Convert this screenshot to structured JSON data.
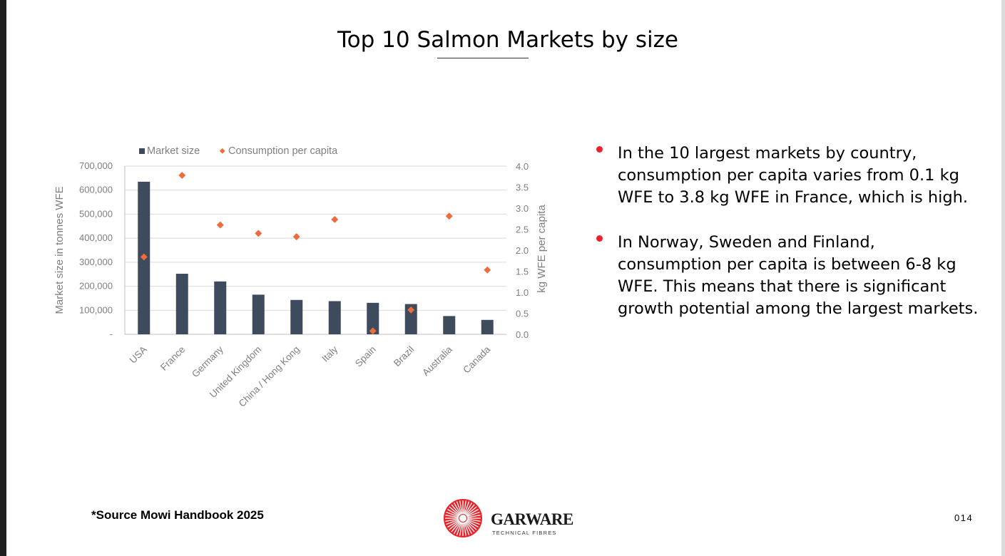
{
  "slide": {
    "title": "Top 10 Salmon Markets by size",
    "source_note": "*Source Mowi Handbook 2025",
    "page_number": "014",
    "logo_name": "GARWARE",
    "logo_tagline": "TECHNICAL FIBRES",
    "accent_color": "#e8232a"
  },
  "bullets": [
    "In the 10 largest markets by country, consumption per capita varies from 0.1 kg WFE to 3.8 kg WFE in France, which is high.",
    "In Norway, Sweden and Finland, consumption per capita is between 6-8 kg WFE. This means that there is significant growth potential among the largest markets."
  ],
  "chart_data": {
    "type": "bar",
    "title": "",
    "categories": [
      "USA",
      "France",
      "Germany",
      "United Kingdom",
      "China / Hong Kong",
      "Italy",
      "Spain",
      "Brazil",
      "Australia",
      "Canada"
    ],
    "series": [
      {
        "name": "Market size",
        "kind": "bar",
        "axis": "left",
        "color": "#3d4b5c",
        "values": [
          635000,
          252000,
          220000,
          165000,
          143000,
          138000,
          131000,
          126000,
          76000,
          60000
        ]
      },
      {
        "name": "Consumption per capita",
        "kind": "scatter",
        "axis": "right",
        "color": "#ed6b3c",
        "values": [
          1.84,
          3.78,
          2.6,
          2.4,
          2.32,
          2.73,
          0.08,
          0.58,
          2.81,
          1.53
        ]
      }
    ],
    "ylabel": "Market size in tonnes WFE",
    "y2label": "kg WFE per capita",
    "ylim": [
      0,
      700000
    ],
    "y2lim": [
      0,
      4.0
    ],
    "yticks": [
      "-",
      "100,000",
      "200,000",
      "300,000",
      "400,000",
      "500,000",
      "600,000",
      "700,000"
    ],
    "y2ticks": [
      "0.0",
      "0.5",
      "1.0",
      "1.5",
      "2.0",
      "2.5",
      "3.0",
      "3.5",
      "4.0"
    ],
    "legend": [
      "Market size",
      "Consumption per capita"
    ],
    "legend_position": "top-left",
    "grid": true
  }
}
